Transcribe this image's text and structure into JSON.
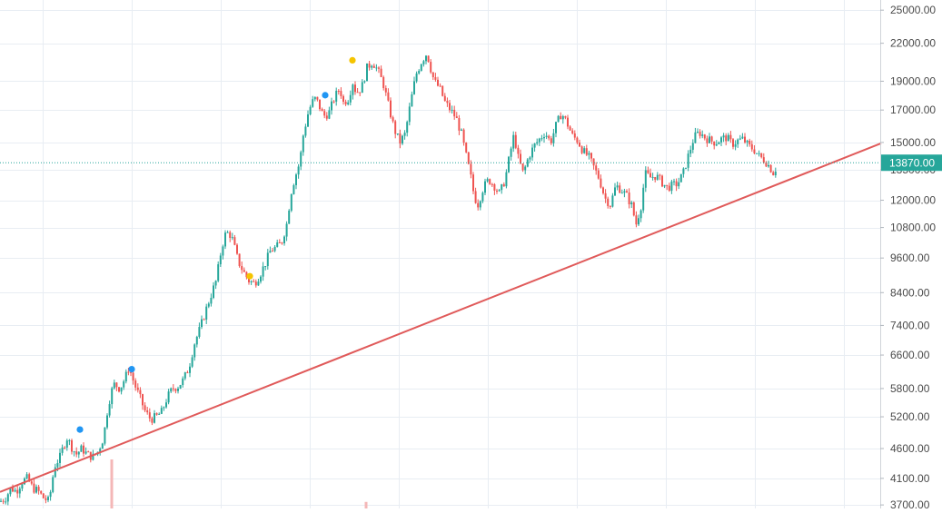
{
  "chart_data": {
    "type": "candlestick",
    "y_scale": "log",
    "ylim": [
      3650,
      26000
    ],
    "grid": true,
    "legend": "none",
    "y_ticks": [
      "25000.00",
      "22000.00",
      "19000.00",
      "17000.00",
      "15000.00",
      "13500.00",
      "12000.00",
      "10800.00",
      "9600.00",
      "8400.00",
      "7400.00",
      "6600.00",
      "5800.00",
      "5200.00",
      "4600.00",
      "4100.00",
      "3700.00"
    ],
    "last_price": {
      "value": 13870,
      "label": "13870.00"
    },
    "close_path": [
      [
        0,
        3750
      ],
      [
        6,
        3800
      ],
      [
        12,
        3950
      ],
      [
        18,
        3900
      ],
      [
        24,
        4050
      ],
      [
        30,
        4100
      ],
      [
        36,
        3950
      ],
      [
        42,
        3900
      ],
      [
        48,
        3800
      ],
      [
        54,
        3750
      ],
      [
        60,
        4300
      ],
      [
        66,
        4450
      ],
      [
        70,
        4650
      ],
      [
        74,
        4800
      ],
      [
        78,
        4650
      ],
      [
        84,
        4500
      ],
      [
        90,
        4600
      ],
      [
        96,
        4500
      ],
      [
        102,
        4450
      ],
      [
        108,
        4550
      ],
      [
        114,
        4800
      ],
      [
        118,
        5300
      ],
      [
        122,
        5700
      ],
      [
        126,
        5900
      ],
      [
        132,
        5800
      ],
      [
        138,
        6050
      ],
      [
        142,
        6300
      ],
      [
        148,
        5900
      ],
      [
        154,
        5600
      ],
      [
        160,
        5300
      ],
      [
        166,
        5150
      ],
      [
        172,
        5200
      ],
      [
        178,
        5300
      ],
      [
        184,
        5600
      ],
      [
        190,
        5800
      ],
      [
        196,
        5850
      ],
      [
        202,
        6000
      ],
      [
        208,
        6300
      ],
      [
        214,
        6900
      ],
      [
        220,
        7300
      ],
      [
        226,
        7800
      ],
      [
        232,
        8300
      ],
      [
        238,
        8800
      ],
      [
        244,
        10000
      ],
      [
        248,
        10500
      ],
      [
        252,
        10600
      ],
      [
        256,
        10300
      ],
      [
        262,
        9500
      ],
      [
        268,
        9100
      ],
      [
        274,
        8800
      ],
      [
        280,
        8700
      ],
      [
        286,
        9000
      ],
      [
        292,
        9400
      ],
      [
        298,
        9900
      ],
      [
        304,
        10000
      ],
      [
        310,
        10200
      ],
      [
        316,
        11000
      ],
      [
        320,
        12300
      ],
      [
        324,
        13000
      ],
      [
        330,
        13900
      ],
      [
        334,
        15500
      ],
      [
        340,
        17000
      ],
      [
        346,
        17800
      ],
      [
        350,
        17500
      ],
      [
        356,
        16600
      ],
      [
        362,
        16800
      ],
      [
        368,
        17800
      ],
      [
        374,
        18500
      ],
      [
        378,
        17500
      ],
      [
        384,
        17800
      ],
      [
        388,
        19000
      ],
      [
        392,
        18200
      ],
      [
        398,
        18500
      ],
      [
        404,
        20000
      ],
      [
        410,
        20500
      ],
      [
        416,
        19800
      ],
      [
        422,
        18800
      ],
      [
        428,
        17200
      ],
      [
        434,
        15800
      ],
      [
        440,
        15000
      ],
      [
        446,
        15500
      ],
      [
        452,
        17500
      ],
      [
        458,
        19500
      ],
      [
        464,
        20500
      ],
      [
        470,
        21200
      ],
      [
        474,
        20000
      ],
      [
        478,
        19000
      ],
      [
        484,
        18500
      ],
      [
        490,
        17500
      ],
      [
        496,
        17000
      ],
      [
        502,
        16500
      ],
      [
        508,
        15500
      ],
      [
        512,
        14500
      ],
      [
        518,
        13200
      ],
      [
        522,
        12200
      ],
      [
        526,
        11800
      ],
      [
        532,
        12600
      ],
      [
        538,
        13000
      ],
      [
        544,
        12700
      ],
      [
        550,
        12300
      ],
      [
        556,
        13000
      ],
      [
        562,
        14500
      ],
      [
        566,
        15500
      ],
      [
        570,
        14200
      ],
      [
        576,
        13300
      ],
      [
        582,
        14200
      ],
      [
        588,
        14800
      ],
      [
        594,
        15200
      ],
      [
        600,
        15600
      ],
      [
        606,
        15000
      ],
      [
        612,
        16000
      ],
      [
        618,
        16800
      ],
      [
        624,
        16200
      ],
      [
        630,
        15400
      ],
      [
        636,
        15100
      ],
      [
        642,
        14500
      ],
      [
        648,
        14200
      ],
      [
        654,
        13600
      ],
      [
        660,
        13000
      ],
      [
        666,
        12100
      ],
      [
        672,
        11800
      ],
      [
        678,
        12700
      ],
      [
        684,
        12500
      ],
      [
        690,
        12200
      ],
      [
        696,
        11700
      ],
      [
        700,
        10900
      ],
      [
        706,
        11800
      ],
      [
        710,
        13300
      ],
      [
        716,
        13100
      ],
      [
        722,
        13200
      ],
      [
        728,
        12900
      ],
      [
        734,
        12600
      ],
      [
        740,
        12700
      ],
      [
        746,
        12800
      ],
      [
        752,
        13300
      ],
      [
        758,
        14300
      ],
      [
        764,
        15300
      ],
      [
        770,
        15600
      ],
      [
        776,
        15300
      ],
      [
        782,
        15100
      ],
      [
        788,
        15000
      ],
      [
        794,
        15200
      ],
      [
        800,
        15300
      ],
      [
        806,
        14900
      ],
      [
        812,
        15100
      ],
      [
        818,
        15200
      ],
      [
        824,
        14800
      ],
      [
        830,
        14600
      ],
      [
        836,
        14200
      ],
      [
        842,
        14000
      ],
      [
        848,
        13600
      ],
      [
        852,
        13300
      ],
      [
        856,
        13870
      ]
    ],
    "markers": [
      {
        "color": "#2196f3",
        "x": 88,
        "value": 4950
      },
      {
        "color": "#2196f3",
        "x": 145,
        "value": 6250
      },
      {
        "color": "#f5c400",
        "x": 275,
        "value": 8950
      },
      {
        "color": "#2196f3",
        "x": 358,
        "value": 18000
      },
      {
        "color": "#f5c400",
        "x": 388,
        "value": 20600
      }
    ],
    "trendline": {
      "color": "#e05a5a",
      "from": [
        0,
        3890
      ],
      "to": [
        970,
        14950
      ]
    },
    "volume_bars": [
      {
        "x": 123,
        "height_frac": 0.9
      },
      {
        "x": 403,
        "height_frac": 0.12
      }
    ]
  },
  "colors": {
    "up": "#26a69a",
    "down": "#ef5350",
    "grid": "#e8edf3",
    "axis_text": "#4a4a4a",
    "price_line": "#26a69a",
    "price_label_bg": "#26a69a",
    "price_label_text": "#ffffff",
    "volume": "#f4b7b7"
  }
}
